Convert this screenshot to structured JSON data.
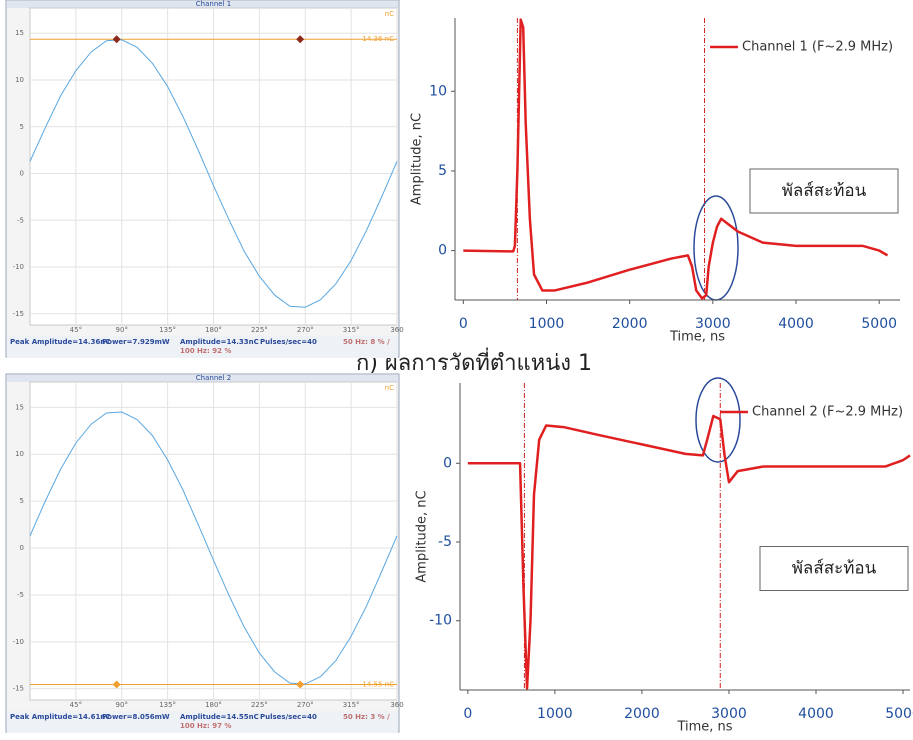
{
  "caption": "ก)  ผลการวัดที่ตำแหน่ง 1",
  "chart_data": [
    {
      "type": "phase",
      "title": "Channel 1",
      "unit": "nC",
      "x": [
        0,
        15,
        30,
        45,
        60,
        75,
        90,
        105,
        120,
        135,
        150,
        165,
        180,
        195,
        210,
        225,
        240,
        255,
        270,
        285,
        300,
        315,
        330,
        345,
        360
      ],
      "values": [
        1.3,
        4.9,
        8.3,
        11.0,
        13.0,
        14.2,
        14.3,
        13.5,
        11.8,
        9.3,
        6.1,
        2.5,
        -1.3,
        -4.9,
        -8.3,
        -11.0,
        -13.0,
        -14.2,
        -14.3,
        -13.5,
        -11.8,
        -9.3,
        -6.1,
        -2.5,
        1.3
      ],
      "color": "#5aa7e0",
      "xlim": [
        0,
        360
      ],
      "ylim": [
        -16.2,
        17.7
      ],
      "xticks": [
        {
          "value": 45,
          "label": "45°"
        },
        {
          "value": 90,
          "label": "90°"
        },
        {
          "value": 135,
          "label": "135°"
        },
        {
          "value": 180,
          "label": "180°"
        },
        {
          "value": 225,
          "label": "225°"
        },
        {
          "value": 270,
          "label": "270°"
        },
        {
          "value": 315,
          "label": "315°"
        },
        360
      ],
      "yticks": [
        15,
        10,
        5,
        0,
        -5,
        -10,
        -15
      ],
      "grid": true,
      "threshold": {
        "value": 14.36,
        "label": "14.36 nC",
        "color": "#f0a030"
      },
      "markers": {
        "x": [
          85,
          265
        ],
        "values": [
          14.36,
          14.36
        ],
        "color": "#8b2a1a"
      },
      "status": [
        "Peak Amplitude=14.36nC",
        "Power=7.929mW",
        "Amplitude=14.33nC",
        "Pulses/sec=40",
        "50 Hz: 8 % /",
        "100 Hz: 92 %"
      ]
    },
    {
      "type": "line",
      "xlabel": "Time, ns",
      "ylabel": "Amplitude, nC",
      "x": [
        0,
        600,
        620,
        650,
        690,
        720,
        750,
        800,
        850,
        950,
        1100,
        1500,
        2000,
        2500,
        2700,
        2750,
        2800,
        2870,
        2920,
        2950,
        3000,
        3050,
        3100,
        3300,
        3600,
        4000,
        4500,
        4800,
        5000,
        5100
      ],
      "series": [
        {
          "name": "Channel 1 (F~2.9 MHz)",
          "color": "#e02020",
          "values": [
            0,
            -0.05,
            0.3,
            5,
            14.5,
            14,
            8,
            2,
            -1.5,
            -2.5,
            -2.5,
            -2.0,
            -1.2,
            -0.5,
            -0.3,
            -1,
            -2.5,
            -3.0,
            -2.8,
            -1,
            0.5,
            1.5,
            2.0,
            1.2,
            0.5,
            0.3,
            0.3,
            0.3,
            0,
            -0.3
          ]
        }
      ],
      "xlim": [
        -100,
        5250
      ],
      "ylim": [
        -3.1,
        14.6
      ],
      "xticks": [
        0,
        1000,
        2000,
        3000,
        4000,
        5000
      ],
      "yticks": [
        0,
        5,
        10
      ],
      "cursors": [
        650,
        2900
      ],
      "annotation": "พัลส์สะท้อน"
    },
    {
      "type": "phase",
      "title": "Channel 2",
      "unit": "nC",
      "x": [
        0,
        15,
        30,
        45,
        60,
        75,
        90,
        105,
        120,
        135,
        150,
        165,
        180,
        195,
        210,
        225,
        240,
        255,
        270,
        285,
        300,
        315,
        330,
        345,
        360
      ],
      "values": [
        1.3,
        5.0,
        8.4,
        11.2,
        13.2,
        14.4,
        14.5,
        13.7,
        12.0,
        9.4,
        6.2,
        2.5,
        -1.3,
        -5.0,
        -8.4,
        -11.2,
        -13.2,
        -14.4,
        -14.5,
        -13.7,
        -12.0,
        -9.4,
        -6.2,
        -2.5,
        1.3
      ],
      "color": "#5aa7e0",
      "xlim": [
        0,
        360
      ],
      "ylim": [
        -16.2,
        17.7
      ],
      "xticks": [
        {
          "value": 45,
          "label": "45°"
        },
        {
          "value": 90,
          "label": "90°"
        },
        {
          "value": 135,
          "label": "135°"
        },
        {
          "value": 180,
          "label": "180°"
        },
        {
          "value": 225,
          "label": "225°"
        },
        {
          "value": 270,
          "label": "270°"
        },
        {
          "value": 315,
          "label": "315°"
        },
        360
      ],
      "yticks": [
        15,
        10,
        5,
        0,
        -5,
        -10,
        -15
      ],
      "grid": true,
      "threshold": {
        "value": -14.55,
        "label": "-14.55 nC",
        "color": "#f0a030"
      },
      "markers": {
        "x": [
          85,
          265
        ],
        "values": [
          -14.55,
          -14.55
        ],
        "color": "#f0a030"
      },
      "status": [
        "Peak Amplitude=14.61nC",
        "Power=8.056mW",
        "Amplitude=14.55nC",
        "Pulses/sec=40",
        "50 Hz: 3 % /",
        "100 Hz: 97 %"
      ]
    },
    {
      "type": "line",
      "xlabel": "Time, ns",
      "ylabel": "Amplitude, nC",
      "x": [
        0,
        600,
        640,
        680,
        720,
        760,
        820,
        900,
        1100,
        1500,
        2000,
        2500,
        2700,
        2750,
        2820,
        2900,
        2950,
        3000,
        3100,
        3400,
        4000,
        4800,
        5000,
        5080
      ],
      "series": [
        {
          "name": "Channel 2 (F~2.9 MHz)",
          "color": "#e02020",
          "values": [
            0,
            0,
            -8,
            -14.3,
            -10,
            -2,
            1.5,
            2.4,
            2.3,
            1.8,
            1.2,
            0.6,
            0.5,
            1.5,
            3,
            2.8,
            0.5,
            -1.2,
            -0.5,
            -0.2,
            -0.2,
            -0.2,
            0.2,
            0.5
          ]
        }
      ],
      "xlim": [
        -90,
        5080
      ],
      "ylim": [
        -14.4,
        5.1
      ],
      "xticks": [
        0,
        1000,
        2000,
        3000,
        4000,
        5000
      ],
      "yticks": [
        0,
        -5,
        -10
      ],
      "cursors": [
        650,
        2900
      ],
      "annotation": "พัลส์สะท้อน"
    }
  ]
}
